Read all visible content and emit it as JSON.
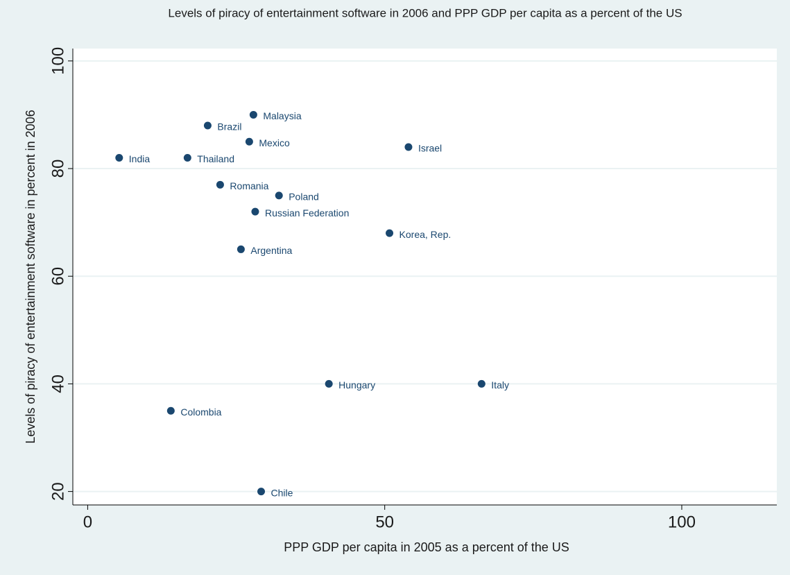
{
  "chart_data": {
    "type": "scatter",
    "title": "Levels of piracy of entertainment software in 2006 and PPP GDP per capita as a percent of the US",
    "xlabel": "PPP GDP per capita in 2005 as a percent of the US",
    "ylabel": "Levels of piracy of entertainment software in percent in 2006",
    "labels": [
      "India",
      "Thailand",
      "Brazil",
      "Malaysia",
      "Mexico",
      "Israel",
      "Romania",
      "Poland",
      "Russian Federation",
      "Korea, Rep.",
      "Argentina",
      "Hungary",
      "Italy",
      "Colombia",
      "Chile"
    ],
    "x": [
      5.3,
      16.8,
      20.2,
      27.9,
      27.2,
      54.0,
      22.3,
      32.2,
      28.2,
      50.8,
      25.8,
      40.6,
      66.3,
      14.0,
      29.2
    ],
    "values": [
      82,
      82,
      88,
      90,
      85,
      84,
      77,
      75,
      72,
      68,
      65,
      40,
      40,
      35,
      20
    ],
    "color": "#1a476f",
    "xlim": [
      -2.5,
      116
    ],
    "ylim": [
      17.5,
      102.3
    ],
    "xticks": [
      0,
      50,
      100
    ],
    "yticks": [
      20,
      40,
      60,
      80,
      100
    ],
    "grid": true
  }
}
